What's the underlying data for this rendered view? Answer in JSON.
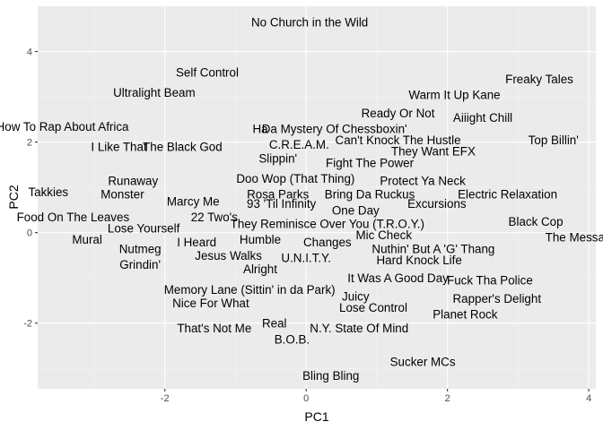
{
  "chart_data": {
    "type": "scatter",
    "xlabel": "PC1",
    "ylabel": "PC2",
    "xlim": [
      -3.8,
      4.1
    ],
    "ylim": [
      -3.45,
      5.0
    ],
    "xticks": [
      -2,
      0,
      2,
      4
    ],
    "yticks": [
      -2,
      0,
      2,
      4
    ],
    "grid": true,
    "colors": {
      "panel": "#ebebeb",
      "grid_major": "#ffffff",
      "grid_minor": "#f5f5f5",
      "text": "#000000",
      "tick_text": "#4d4d4d"
    },
    "points": [
      {
        "label": "No Church in the Wild",
        "x": 0.05,
        "y": 4.65
      },
      {
        "label": "Self Control",
        "x": -1.4,
        "y": 3.55
      },
      {
        "label": "Ultralight Beam",
        "x": -2.15,
        "y": 3.1
      },
      {
        "label": "Freaky Tales",
        "x": 3.3,
        "y": 3.4
      },
      {
        "label": "Warm It Up Kane",
        "x": 2.1,
        "y": 3.05
      },
      {
        "label": "Ready Or Not",
        "x": 1.3,
        "y": 2.65
      },
      {
        "label": "Aiiight Chill",
        "x": 2.5,
        "y": 2.55
      },
      {
        "label": "How To Rap About Africa",
        "x": -3.45,
        "y": 2.35
      },
      {
        "label": "Ha",
        "x": -0.65,
        "y": 2.3
      },
      {
        "label": "Da Mystery Of Chessboxin'",
        "x": 0.4,
        "y": 2.3
      },
      {
        "label": "Can't Knock The Hustle",
        "x": 1.3,
        "y": 2.05
      },
      {
        "label": "Top Billin'",
        "x": 3.5,
        "y": 2.05
      },
      {
        "label": "I Like That",
        "x": -2.65,
        "y": 1.9
      },
      {
        "label": "The Black God",
        "x": -1.75,
        "y": 1.9
      },
      {
        "label": "C.R.E.A.M.",
        "x": -0.1,
        "y": 1.95
      },
      {
        "label": "They Want EFX",
        "x": 1.8,
        "y": 1.8
      },
      {
        "label": "Slippin'",
        "x": -0.4,
        "y": 1.65
      },
      {
        "label": "Fight The Power",
        "x": 0.9,
        "y": 1.55
      },
      {
        "label": "Doo Wop (That Thing)",
        "x": -0.15,
        "y": 1.2
      },
      {
        "label": "Protect Ya Neck",
        "x": 1.65,
        "y": 1.15
      },
      {
        "label": "Takkies",
        "x": -3.65,
        "y": 0.9
      },
      {
        "label": "Runaway",
        "x": -2.45,
        "y": 1.15
      },
      {
        "label": "Monster",
        "x": -2.6,
        "y": 0.85
      },
      {
        "label": "Rosa Parks",
        "x": -0.4,
        "y": 0.85
      },
      {
        "label": "Bring Da Ruckus",
        "x": 0.9,
        "y": 0.85
      },
      {
        "label": "Electric Relaxation",
        "x": 2.85,
        "y": 0.85
      },
      {
        "label": "Marcy Me",
        "x": -1.6,
        "y": 0.7
      },
      {
        "label": "93 'Til Infinity",
        "x": -0.35,
        "y": 0.65
      },
      {
        "label": "Excursions",
        "x": 1.85,
        "y": 0.65
      },
      {
        "label": "One Day",
        "x": 0.7,
        "y": 0.5
      },
      {
        "label": "Food On The Leaves",
        "x": -3.3,
        "y": 0.35
      },
      {
        "label": "22 Two's",
        "x": -1.3,
        "y": 0.35
      },
      {
        "label": "They Reminisce Over You (T.R.O.Y.)",
        "x": 0.3,
        "y": 0.2
      },
      {
        "label": "Black Cop",
        "x": 3.25,
        "y": 0.25
      },
      {
        "label": "Lose Yourself",
        "x": -2.3,
        "y": 0.1
      },
      {
        "label": "Mic Check",
        "x": 1.1,
        "y": -0.05
      },
      {
        "label": "The Message",
        "x": 3.9,
        "y": -0.1
      },
      {
        "label": "Mural",
        "x": -3.1,
        "y": -0.15
      },
      {
        "label": "I Heard",
        "x": -1.55,
        "y": -0.2
      },
      {
        "label": "Humble",
        "x": -0.65,
        "y": -0.15
      },
      {
        "label": "Changes",
        "x": 0.3,
        "y": -0.2
      },
      {
        "label": "Nutmeg",
        "x": -2.35,
        "y": -0.35
      },
      {
        "label": "Nuthin' But A 'G' Thang",
        "x": 1.8,
        "y": -0.35
      },
      {
        "label": "Jesus Walks",
        "x": -1.1,
        "y": -0.5
      },
      {
        "label": "U.N.I.T.Y.",
        "x": 0.0,
        "y": -0.55
      },
      {
        "label": "Hard Knock Life",
        "x": 1.6,
        "y": -0.6
      },
      {
        "label": "Grindin'",
        "x": -2.35,
        "y": -0.7
      },
      {
        "label": "Alright",
        "x": -0.65,
        "y": -0.8
      },
      {
        "label": "It Was A Good Day",
        "x": 1.3,
        "y": -1.0
      },
      {
        "label": "Fuck Tha Police",
        "x": 2.6,
        "y": -1.05
      },
      {
        "label": "Memory Lane (Sittin' in da Park)",
        "x": -0.8,
        "y": -1.25
      },
      {
        "label": "Juicy",
        "x": 0.7,
        "y": -1.4
      },
      {
        "label": "Rapper's Delight",
        "x": 2.7,
        "y": -1.45
      },
      {
        "label": "Nice For What",
        "x": -1.35,
        "y": -1.55
      },
      {
        "label": "Lose Control",
        "x": 0.95,
        "y": -1.65
      },
      {
        "label": "Planet Rock",
        "x": 2.25,
        "y": -1.8
      },
      {
        "label": "That's Not Me",
        "x": -1.3,
        "y": -2.1
      },
      {
        "label": "Real",
        "x": -0.45,
        "y": -2.0
      },
      {
        "label": "N.Y. State Of Mind",
        "x": 0.75,
        "y": -2.1
      },
      {
        "label": "B.O.B.",
        "x": -0.2,
        "y": -2.35
      },
      {
        "label": "Sucker MCs",
        "x": 1.65,
        "y": -2.85
      },
      {
        "label": "Bling Bling",
        "x": 0.35,
        "y": -3.15
      }
    ]
  }
}
